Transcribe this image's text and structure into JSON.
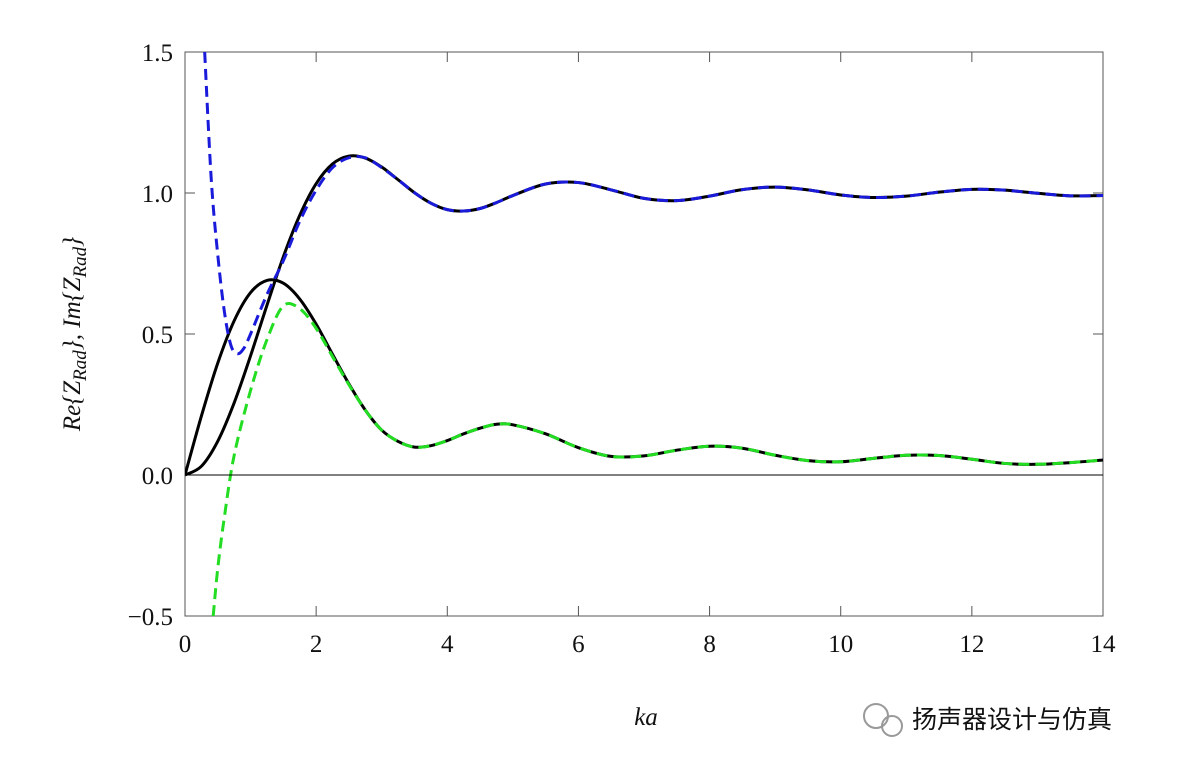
{
  "chart_data": {
    "type": "line",
    "xlabel": "ka",
    "ylabel_parts": [
      "Re{Z",
      "Rad",
      "}, Im{Z",
      "Rad",
      "}"
    ],
    "watermark": "扬声器设计与仿真",
    "xlim": [
      0,
      14
    ],
    "xticks": [
      0,
      2,
      4,
      6,
      8,
      10,
      12,
      14
    ],
    "ylim": [
      -0.5,
      1.5
    ],
    "yticks": [
      {
        "value": -0.5,
        "label": "−0.5"
      },
      {
        "value": 0,
        "label": "0.0"
      },
      0.5,
      {
        "value": 1,
        "label": "1.0"
      },
      1.5
    ],
    "zero_line": true,
    "series": [
      {
        "color": "#000000",
        "dash": false,
        "x": [
          0,
          0.25,
          0.5,
          0.75,
          1,
          1.25,
          1.5,
          1.75,
          2,
          2.25,
          2.5,
          2.75,
          3,
          3.25,
          3.5,
          3.75,
          4,
          4.25,
          4.5,
          4.75,
          5,
          5.5,
          6,
          6.5,
          7,
          7.5,
          8,
          8.5,
          9,
          9.5,
          10,
          10.5,
          11,
          11.5,
          12,
          12.5,
          13,
          13.5,
          14
        ],
        "values": [
          0,
          0.031,
          0.12,
          0.256,
          0.423,
          0.602,
          0.774,
          0.921,
          1.033,
          1.103,
          1.131,
          1.124,
          1.092,
          1.047,
          1.001,
          0.964,
          0.941,
          0.936,
          0.945,
          0.966,
          0.991,
          1.032,
          1.037,
          1.011,
          0.981,
          0.973,
          0.989,
          1.012,
          1.021,
          1.011,
          0.993,
          0.984,
          0.989,
          1.003,
          1.013,
          1.01,
          0.999,
          0.99,
          0.991
        ]
      },
      {
        "color": "#000000",
        "dash": false,
        "x": [
          0,
          0.25,
          0.5,
          0.75,
          1,
          1.25,
          1.5,
          1.75,
          2,
          2.25,
          2.5,
          2.75,
          3,
          3.25,
          3.5,
          3.75,
          4,
          4.25,
          4.5,
          4.75,
          5,
          5.5,
          6,
          6.5,
          7,
          7.5,
          8,
          8.5,
          9,
          9.5,
          10,
          10.5,
          11,
          11.5,
          12,
          12.5,
          13,
          13.5,
          14
        ],
        "values": [
          0,
          0.209,
          0.397,
          0.547,
          0.647,
          0.69,
          0.68,
          0.624,
          0.535,
          0.428,
          0.323,
          0.23,
          0.159,
          0.119,
          0.099,
          0.104,
          0.122,
          0.146,
          0.166,
          0.18,
          0.178,
          0.146,
          0.097,
          0.066,
          0.068,
          0.088,
          0.102,
          0.095,
          0.07,
          0.051,
          0.047,
          0.059,
          0.07,
          0.069,
          0.056,
          0.041,
          0.038,
          0.044,
          0.053
        ]
      },
      {
        "color": "#1a1adb",
        "dash": true,
        "x": [
          0.3,
          0.4,
          0.5,
          0.6,
          0.7,
          0.8,
          0.9,
          1,
          1.25,
          1.5,
          1.75,
          2,
          2.25,
          2.5,
          2.75,
          3,
          3.25,
          3.5,
          3.75,
          4,
          4.25,
          4.5,
          4.75,
          5,
          5.5,
          6,
          6.5,
          7,
          7.5,
          8,
          8.5,
          9,
          9.5,
          10,
          10.5,
          11,
          11.5,
          12,
          12.5,
          13,
          13.5,
          14
        ],
        "values": [
          1.5,
          1.05,
          0.78,
          0.58,
          0.46,
          0.43,
          0.45,
          0.5,
          0.64,
          0.76,
          0.9,
          1.01,
          1.09,
          1.125,
          1.125,
          1.09,
          1.047,
          1.001,
          0.964,
          0.941,
          0.936,
          0.945,
          0.966,
          0.991,
          1.032,
          1.037,
          1.011,
          0.981,
          0.973,
          0.989,
          1.012,
          1.021,
          1.011,
          0.993,
          0.984,
          0.989,
          1.003,
          1.013,
          1.01,
          0.999,
          0.99,
          0.991
        ]
      },
      {
        "color": "#22dd22",
        "dash": true,
        "x": [
          0.43,
          0.5,
          0.6,
          0.75,
          1,
          1.25,
          1.5,
          1.75,
          2,
          2.25,
          2.5,
          2.75,
          3,
          3.25,
          3.5,
          3.75,
          4,
          4.25,
          4.5,
          4.75,
          5,
          5.5,
          6,
          6.5,
          7,
          7.5,
          8,
          8.5,
          9,
          9.5,
          10,
          10.5,
          11,
          11.5,
          12,
          12.5,
          13,
          13.5,
          14
        ],
        "values": [
          -0.5,
          -0.33,
          -0.15,
          0.07,
          0.3,
          0.48,
          0.6,
          0.59,
          0.52,
          0.42,
          0.32,
          0.23,
          0.159,
          0.119,
          0.099,
          0.104,
          0.122,
          0.146,
          0.166,
          0.18,
          0.178,
          0.146,
          0.097,
          0.066,
          0.068,
          0.088,
          0.102,
          0.095,
          0.07,
          0.051,
          0.047,
          0.059,
          0.07,
          0.069,
          0.056,
          0.041,
          0.038,
          0.044,
          0.053
        ]
      }
    ]
  }
}
